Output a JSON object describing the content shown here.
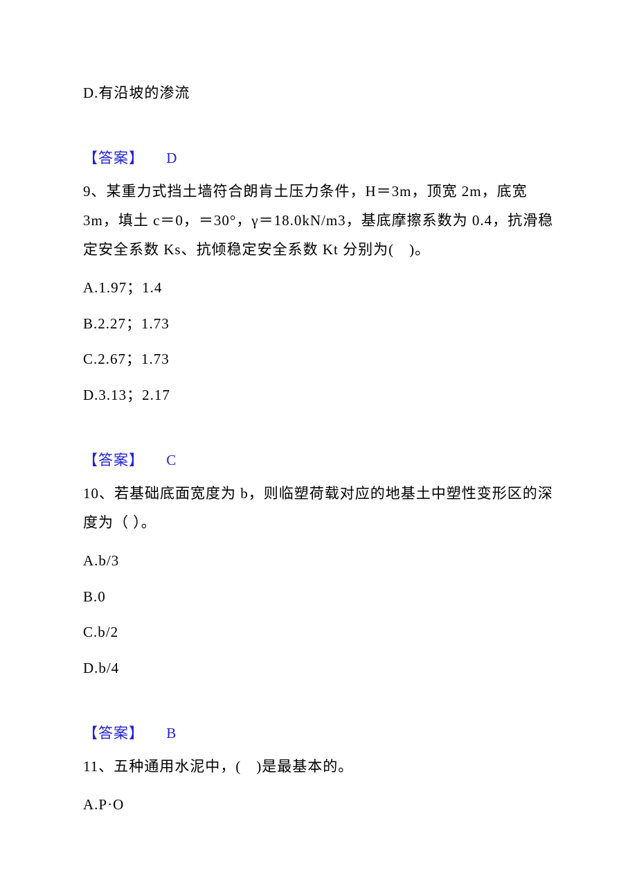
{
  "colors": {
    "text": "#000000",
    "answer": "#2323d5",
    "background": "#ffffff"
  },
  "typography": {
    "font_family": "SimSun",
    "font_size_pt": 16,
    "line_height": 1.6
  },
  "blocks": [
    {
      "type": "option",
      "key": "D",
      "text": "D.有沿坡的渗流"
    },
    {
      "type": "answer",
      "label": "【答案】",
      "value": "D"
    },
    {
      "type": "question",
      "number": "9",
      "text": "9、某重力式挡土墙符合朗肯土压力条件，H＝3m，顶宽 2m，底宽 3m，填土 c＝0，＝30°，γ＝18.0kN/m3，基底摩擦系数为 0.4，抗滑稳定安全系数 Ks、抗倾稳定安全系数 Kt 分别为(　)。",
      "options": [
        "A.1.97；1.4",
        "B.2.27；1.73",
        "C.2.67；1.73",
        "D.3.13；2.17"
      ]
    },
    {
      "type": "answer",
      "label": "【答案】",
      "value": "C"
    },
    {
      "type": "question",
      "number": "10",
      "text": "10、若基础底面宽度为 b，则临塑荷载对应的地基土中塑性变形区的深度为（ ）。",
      "options": [
        "A.b/3",
        "B.0",
        "C.b/2",
        "D.b/4"
      ]
    },
    {
      "type": "answer",
      "label": "【答案】",
      "value": "B"
    },
    {
      "type": "question",
      "number": "11",
      "text": "11、五种通用水泥中，(　)是最基本的。",
      "options": [
        "A.P·O"
      ]
    }
  ]
}
